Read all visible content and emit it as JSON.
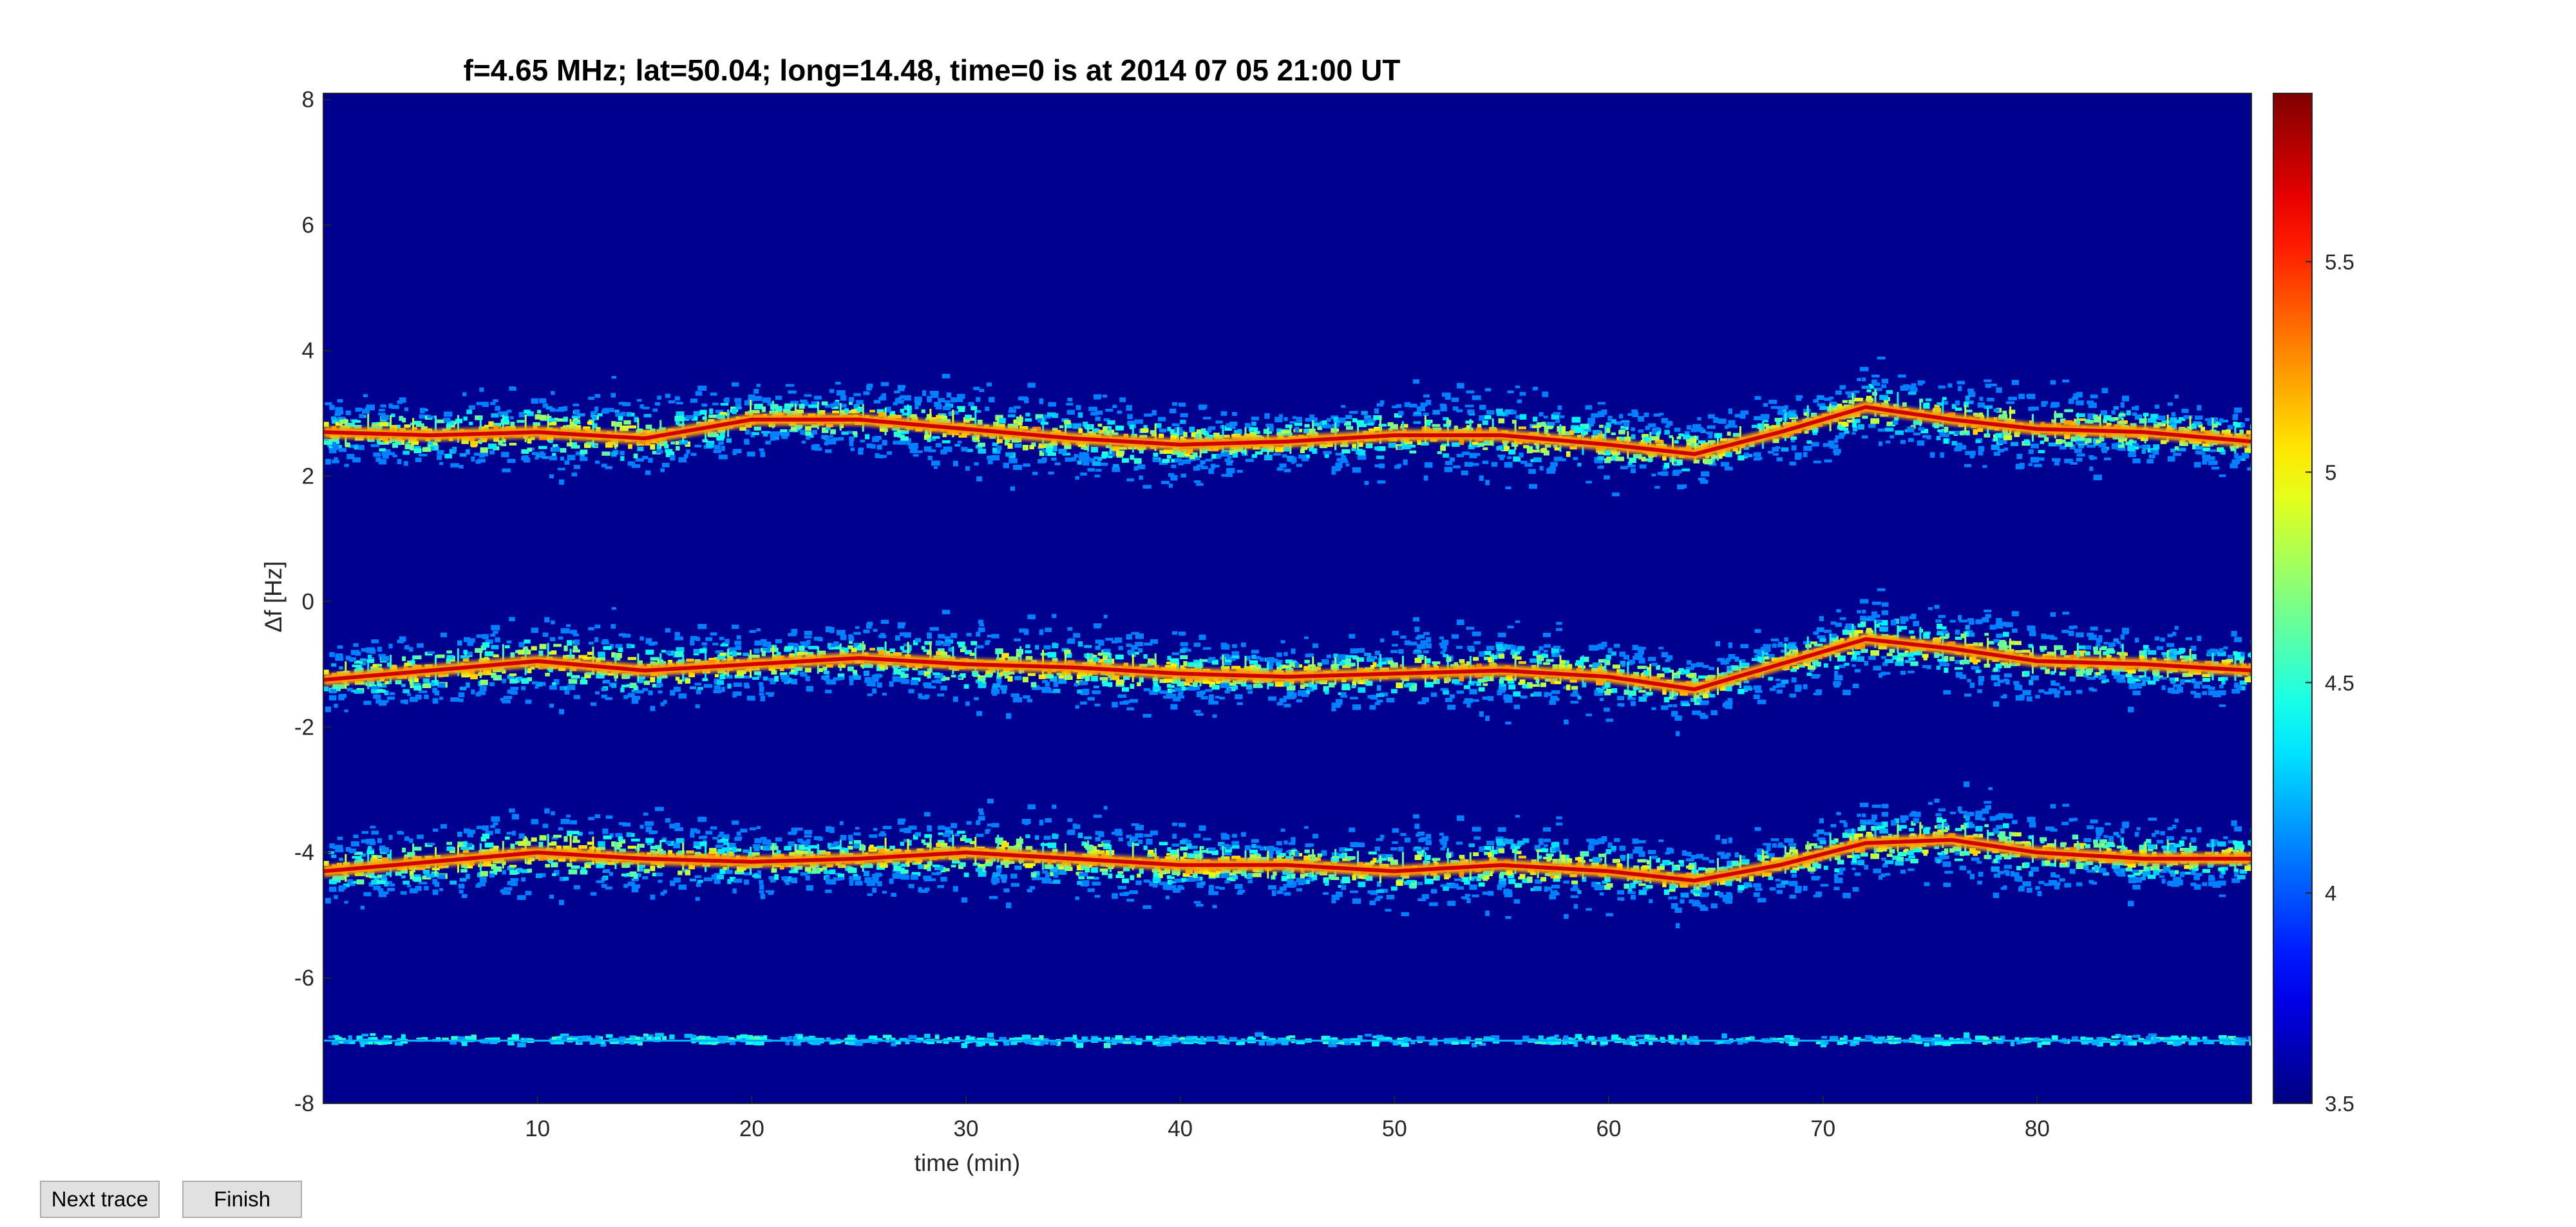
{
  "chart_data": {
    "type": "heatmap",
    "title": "f=4.65 MHz;  lat=50.04; long=14.48, time=0 is at 2014 07 05 21:00 UT",
    "xlabel": "time (min)",
    "ylabel": "Δf [Hz]",
    "xlim": [
      0,
      90
    ],
    "ylim": [
      -8,
      8.1
    ],
    "xticks": [
      10,
      20,
      30,
      40,
      50,
      60,
      70,
      80
    ],
    "yticks": [
      -8,
      -6,
      -4,
      -2,
      0,
      2,
      4,
      6,
      8
    ],
    "grid": false,
    "colormap": "jet",
    "colorbar": {
      "range": [
        3.5,
        5.9
      ],
      "ticks": [
        3.5,
        4,
        4.5,
        5,
        5.5
      ],
      "tick_labels": [
        "3.5",
        "4",
        "4.5",
        "5",
        "5.5"
      ]
    },
    "background_color": "#00008f",
    "traces": [
      {
        "x": [
          0,
          5,
          10,
          15,
          20,
          25,
          30,
          35,
          40,
          45,
          50,
          55,
          60,
          64,
          68,
          72,
          76,
          80,
          85,
          90
        ],
        "y": [
          2.7,
          2.65,
          2.7,
          2.6,
          2.9,
          2.9,
          2.75,
          2.6,
          2.5,
          2.55,
          2.65,
          2.65,
          2.5,
          2.35,
          2.7,
          3.1,
          2.9,
          2.75,
          2.7,
          2.55
        ]
      },
      {
        "x": [
          0,
          5,
          10,
          15,
          20,
          25,
          30,
          35,
          40,
          45,
          50,
          55,
          60,
          64,
          68,
          72,
          76,
          80,
          85,
          90
        ],
        "y": [
          -1.25,
          -1.1,
          -0.95,
          -1.1,
          -1.0,
          -0.9,
          -1.0,
          -1.05,
          -1.15,
          -1.2,
          -1.15,
          -1.1,
          -1.2,
          -1.4,
          -1.0,
          -0.6,
          -0.75,
          -0.95,
          -1.0,
          -1.1
        ]
      },
      {
        "x": [
          0,
          5,
          10,
          15,
          20,
          25,
          30,
          35,
          40,
          45,
          50,
          55,
          60,
          64,
          68,
          72,
          76,
          80,
          85,
          90
        ],
        "y": [
          -4.3,
          -4.15,
          -4.0,
          -4.1,
          -4.15,
          -4.1,
          -4.0,
          -4.1,
          -4.2,
          -4.2,
          -4.3,
          -4.2,
          -4.3,
          -4.45,
          -4.2,
          -3.85,
          -3.8,
          -4.0,
          -4.1,
          -4.1
        ]
      },
      {
        "x": [
          0,
          90
        ],
        "y": [
          -7.0,
          -7.0
        ]
      }
    ]
  },
  "buttons": {
    "next_trace": "Next trace",
    "finish": "Finish"
  }
}
